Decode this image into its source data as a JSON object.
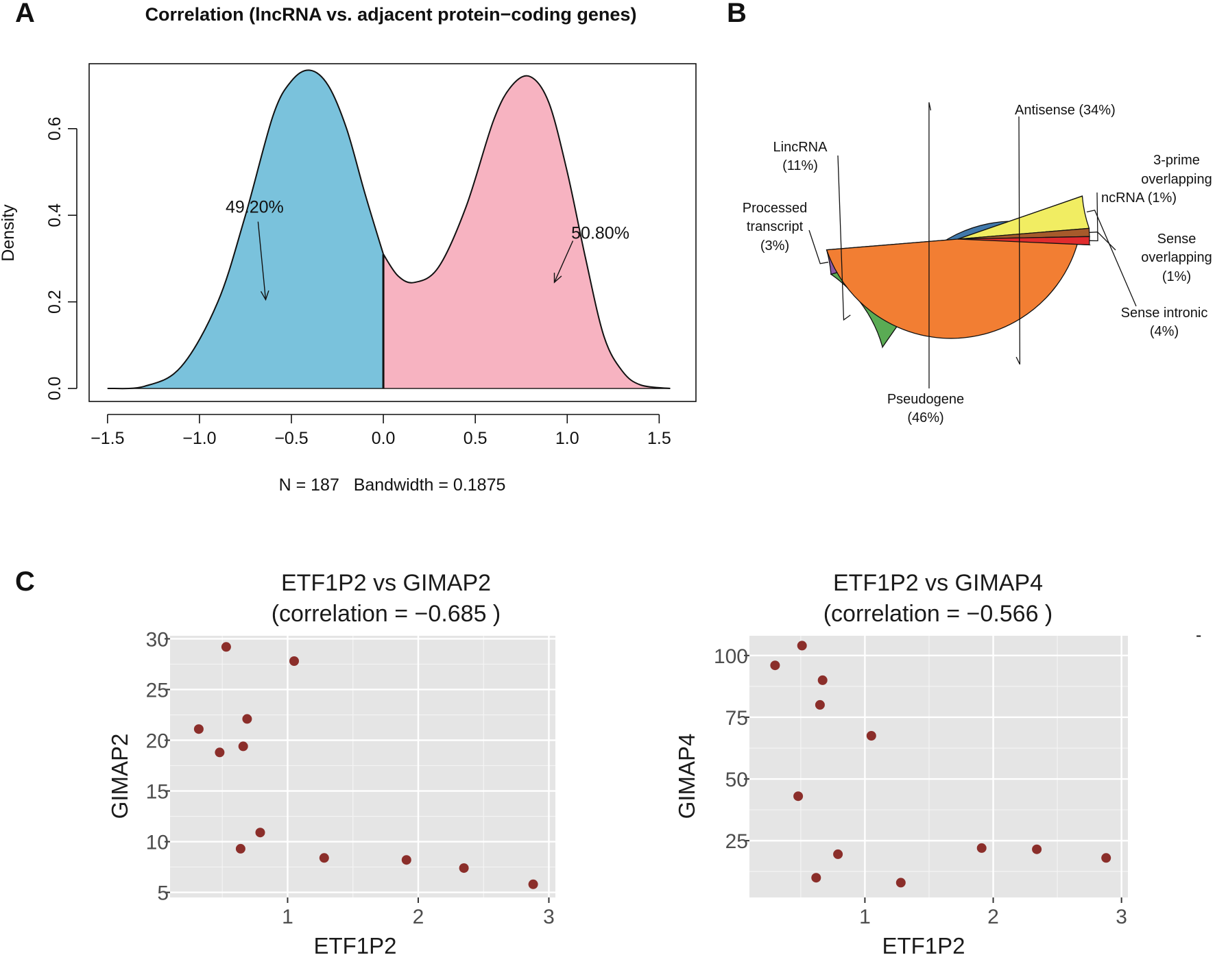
{
  "panel_labels": [
    "A",
    "B",
    "C"
  ],
  "stray_mark": "-",
  "chart_data": [
    {
      "id": "A",
      "type": "area",
      "title": "Correlation (lncRNA vs. adjacent protein−coding genes)",
      "xlabel": "N = 187   Bandwidth = 0.1875",
      "ylabel": "Density",
      "xlim": [
        -1.6,
        1.7
      ],
      "ylim": [
        -0.03,
        0.75
      ],
      "xticks": [
        -1.5,
        -1.0,
        -0.5,
        0.0,
        0.5,
        1.0,
        1.5
      ],
      "xtick_labels": [
        "−1.5",
        "−1.0",
        "−0.5",
        "0.0",
        "0.5",
        "1.0",
        "1.5"
      ],
      "yticks": [
        0.0,
        0.2,
        0.4,
        0.6
      ],
      "ytick_labels": [
        "0.0",
        "0.2",
        "0.4",
        "0.6"
      ],
      "split_at": 0.0,
      "series": [
        {
          "name": "negative",
          "color": "#7ac2dc",
          "x": [
            -1.5,
            -1.3,
            -1.1,
            -0.9,
            -0.75,
            -0.6,
            -0.5,
            -0.4,
            -0.3,
            -0.2,
            -0.1,
            0.0
          ],
          "y": [
            0.0,
            0.005,
            0.05,
            0.2,
            0.4,
            0.63,
            0.71,
            0.735,
            0.7,
            0.6,
            0.45,
            0.31
          ]
        },
        {
          "name": "positive",
          "color": "#f7b3c1",
          "x": [
            0.0,
            0.08,
            0.17,
            0.3,
            0.45,
            0.6,
            0.7,
            0.8,
            0.9,
            1.0,
            1.1,
            1.2,
            1.3,
            1.4,
            1.56
          ],
          "y": [
            0.31,
            0.26,
            0.245,
            0.28,
            0.42,
            0.62,
            0.7,
            0.72,
            0.66,
            0.5,
            0.3,
            0.12,
            0.04,
            0.008,
            0.0
          ]
        }
      ],
      "annotations": [
        {
          "text": "49.20%",
          "x": -0.7,
          "y": 0.42,
          "arrow_to": [
            -0.64,
            0.205
          ]
        },
        {
          "text": "50.80%",
          "x": 1.18,
          "y": 0.36,
          "arrow_to": [
            0.93,
            0.245
          ]
        }
      ]
    },
    {
      "id": "B",
      "type": "pie",
      "start_angle_deg": -2.5,
      "slices": [
        {
          "label": "Antisense (34%)",
          "value": 34,
          "color": "#4179ab"
        },
        {
          "label": "LincRNA (11%)",
          "value": 11,
          "color": "#5aab54"
        },
        {
          "label": "Processed transcript (3%)",
          "value": 3,
          "color": "#8e58a5"
        },
        {
          "label": "Pseudogene (46%)",
          "value": 46,
          "color": "#f27e33"
        },
        {
          "label": "Sense intronic (4%)",
          "value": 4,
          "color": "#f1ed62"
        },
        {
          "label": "Sense overlapping (1%)",
          "value": 1,
          "color": "#a65a2b"
        },
        {
          "label": "3-prime overlapping ncRNA (1%)",
          "value": 1,
          "color": "#e02c2e"
        }
      ],
      "label_lines": {
        "antisense": [
          "Antisense (34%)"
        ],
        "lincrna": [
          "LincRNA",
          "(11%)"
        ],
        "processed": [
          "Processed",
          "transcript",
          "(3%)"
        ],
        "pseudogene": [
          "Pseudogene",
          "(46%)"
        ],
        "sense_intronic": [
          "Sense intronic",
          "(4%)"
        ],
        "sense_overlapping": [
          "Sense",
          "overlapping",
          "(1%)"
        ],
        "three_prime": [
          "3-prime",
          "overlapping",
          "ncRNA (1%)"
        ]
      }
    },
    {
      "id": "C1",
      "type": "scatter",
      "title": [
        "ETF1P2 vs GIMAP2",
        "(correlation = −0.685 )"
      ],
      "xlabel": "ETF1P2",
      "ylabel": "GIMAP2",
      "xlim": [
        0.1,
        3.05
      ],
      "ylim": [
        4.5,
        30.3
      ],
      "xticks": [
        1,
        2,
        3
      ],
      "yticks": [
        5,
        10,
        15,
        20,
        25,
        30
      ],
      "point_color": "#8b2e2a",
      "points": [
        [
          0.32,
          21.1
        ],
        [
          0.48,
          18.8
        ],
        [
          0.53,
          29.2
        ],
        [
          0.64,
          9.3
        ],
        [
          0.66,
          19.4
        ],
        [
          0.69,
          22.1
        ],
        [
          0.79,
          10.9
        ],
        [
          1.05,
          27.8
        ],
        [
          1.28,
          8.4
        ],
        [
          1.91,
          8.2
        ],
        [
          2.35,
          7.4
        ],
        [
          2.88,
          5.8
        ]
      ]
    },
    {
      "id": "C2",
      "type": "scatter",
      "title": [
        "ETF1P2 vs GIMAP4",
        "(correlation = −0.566 )"
      ],
      "xlabel": "ETF1P2",
      "ylabel": "GIMAP4",
      "xlim": [
        0.1,
        3.05
      ],
      "ylim": [
        2,
        108
      ],
      "xticks": [
        1,
        2,
        3
      ],
      "yticks": [
        25,
        50,
        75,
        100
      ],
      "point_color": "#8b2e2a",
      "points": [
        [
          0.3,
          96
        ],
        [
          0.48,
          43
        ],
        [
          0.51,
          104
        ],
        [
          0.62,
          10
        ],
        [
          0.65,
          80
        ],
        [
          0.67,
          90
        ],
        [
          0.79,
          19.5
        ],
        [
          1.05,
          67.5
        ],
        [
          1.28,
          8
        ],
        [
          1.91,
          22
        ],
        [
          2.34,
          21.5
        ],
        [
          2.88,
          18
        ]
      ]
    }
  ]
}
